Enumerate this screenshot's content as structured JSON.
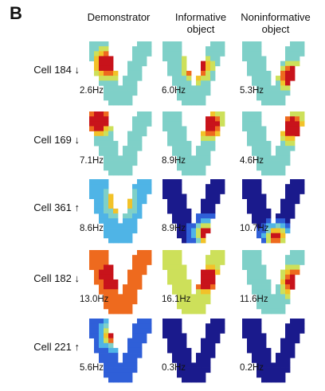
{
  "panel_label": "B",
  "columns": [
    "Demonstrator",
    "Informative\nobject",
    "Noninformative\nobject"
  ],
  "rows": [
    {
      "label": "Cell 184 ↓",
      "rates": [
        "2.6Hz",
        "6.0Hz",
        "5.3Hz"
      ]
    },
    {
      "label": "Cell 169 ↓",
      "rates": [
        "7.1Hz",
        "8.9Hz",
        "4.6Hz"
      ]
    },
    {
      "label": "Cell 361 ↑",
      "rates": [
        "8.6Hz",
        "8.9Hz",
        "10.7Hz"
      ]
    },
    {
      "label": "Cell 182 ↓",
      "rates": [
        "13.0Hz",
        "16.1Hz",
        "11.6Hz"
      ]
    },
    {
      "label": "Cell 221 ↑",
      "rates": [
        "5.6Hz",
        "0.3Hz",
        "0.2Hz"
      ]
    }
  ],
  "colormap": [
    "#1a1a8c",
    "#2f5fd8",
    "#4fb4e6",
    "#7fd0c8",
    "#cde05a",
    "#f2c229",
    "#ee6a1e",
    "#c8131b"
  ]
}
